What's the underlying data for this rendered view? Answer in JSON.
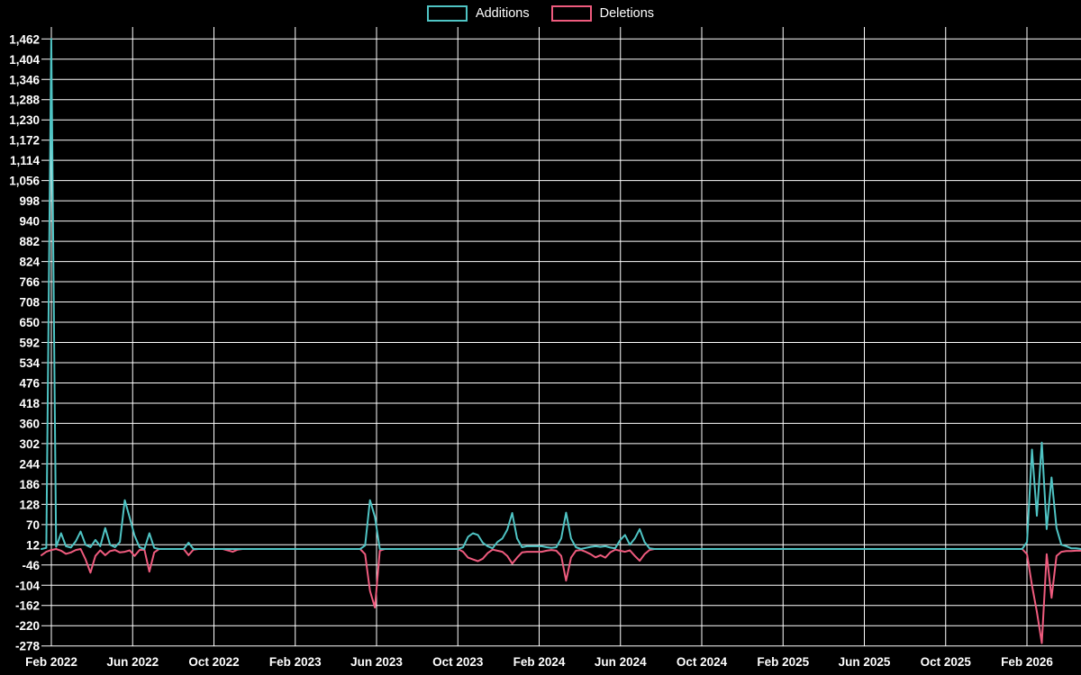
{
  "chart_data": {
    "type": "line",
    "title": "",
    "x_axis_unit": "weekly points from Feb 2022 to Feb 2026",
    "x_tick_labels": [
      "Feb 2022",
      "Jun 2022",
      "Oct 2022",
      "Feb 2023",
      "Jun 2023",
      "Oct 2023",
      "Feb 2024",
      "Jun 2024",
      "Oct 2024",
      "Feb 2025",
      "Jun 2025",
      "Oct 2025",
      "Feb 2026"
    ],
    "y_ticks": [
      -278,
      -220,
      -162,
      -104,
      -46,
      12,
      70,
      128,
      186,
      244,
      302,
      360,
      418,
      476,
      534,
      592,
      650,
      708,
      766,
      824,
      882,
      940,
      998,
      1056,
      1114,
      1172,
      1230,
      1288,
      1346,
      1404,
      1462
    ],
    "ylim": [
      -278,
      1462
    ],
    "grid": true,
    "legend_position": "top",
    "background_color": "#000000",
    "grid_color": "#ffffff",
    "text_color": "#ffffff",
    "series": [
      {
        "name": "Additions",
        "color": "#4fc4c4",
        "values": [
          0,
          3,
          1462,
          6,
          45,
          8,
          4,
          22,
          50,
          12,
          5,
          26,
          8,
          60,
          12,
          5,
          20,
          140,
          90,
          38,
          5,
          0,
          45,
          3,
          0,
          0,
          0,
          0,
          0,
          0,
          18,
          0,
          0,
          0,
          0,
          0,
          0,
          0,
          0,
          0,
          0,
          0,
          0,
          0,
          0,
          0,
          0,
          0,
          0,
          0,
          0,
          0,
          0,
          0,
          0,
          0,
          0,
          0,
          0,
          0,
          0,
          0,
          0,
          0,
          0,
          0,
          10,
          140,
          92,
          0,
          0,
          0,
          0,
          0,
          0,
          0,
          0,
          0,
          0,
          0,
          0,
          0,
          0,
          0,
          0,
          0,
          5,
          35,
          45,
          40,
          18,
          8,
          2,
          20,
          30,
          55,
          103,
          30,
          5,
          8,
          8,
          8,
          8,
          5,
          3,
          5,
          30,
          104,
          30,
          5,
          0,
          3,
          6,
          8,
          6,
          8,
          4,
          2,
          25,
          40,
          12,
          30,
          57,
          20,
          2,
          0,
          0,
          0,
          0,
          0,
          0,
          0,
          0,
          0,
          0,
          0,
          0,
          0,
          0,
          0,
          0,
          0,
          0,
          0,
          0,
          0,
          0,
          0,
          0,
          0,
          0,
          0,
          0,
          0,
          0,
          0,
          0,
          0,
          0,
          0,
          0,
          0,
          0,
          0,
          0,
          0,
          0,
          0,
          0,
          0,
          0,
          0,
          0,
          0,
          0,
          0,
          0,
          0,
          0,
          0,
          0,
          0,
          0,
          0,
          0,
          0,
          0,
          0,
          0,
          0,
          0,
          0,
          0,
          0,
          0,
          0,
          0,
          0,
          0,
          0,
          0,
          20,
          285,
          95,
          305,
          57,
          205,
          60,
          12,
          8,
          2,
          2,
          0
        ]
      },
      {
        "name": "Deletions",
        "color": "#ef5b7e",
        "values": [
          -18,
          -8,
          -3,
          0,
          -5,
          -14,
          -10,
          -3,
          0,
          -30,
          -68,
          -20,
          -4,
          -18,
          -6,
          -3,
          -10,
          -8,
          -4,
          -20,
          -3,
          -2,
          -65,
          -10,
          0,
          0,
          0,
          0,
          0,
          0,
          -18,
          -2,
          0,
          0,
          0,
          0,
          0,
          0,
          -4,
          -8,
          -2,
          0,
          0,
          0,
          0,
          0,
          0,
          0,
          0,
          0,
          0,
          0,
          0,
          0,
          0,
          0,
          0,
          0,
          0,
          0,
          0,
          0,
          0,
          0,
          0,
          0,
          -15,
          -120,
          -168,
          -5,
          0,
          0,
          0,
          0,
          0,
          0,
          0,
          0,
          0,
          0,
          0,
          0,
          0,
          0,
          0,
          0,
          -8,
          -25,
          -30,
          -35,
          -28,
          -12,
          -2,
          -5,
          -8,
          -20,
          -42,
          -25,
          -10,
          -8,
          -8,
          -8,
          -8,
          -5,
          -3,
          -5,
          -20,
          -91,
          -25,
          -5,
          -3,
          -8,
          -15,
          -24,
          -18,
          -25,
          -10,
          -2,
          -5,
          -8,
          -4,
          -20,
          -34,
          -15,
          -3,
          0,
          0,
          0,
          0,
          0,
          0,
          0,
          0,
          0,
          0,
          0,
          0,
          0,
          0,
          0,
          0,
          0,
          0,
          0,
          0,
          0,
          0,
          0,
          0,
          0,
          0,
          0,
          0,
          0,
          0,
          0,
          0,
          0,
          0,
          0,
          0,
          0,
          0,
          0,
          0,
          0,
          0,
          0,
          0,
          0,
          0,
          0,
          0,
          0,
          0,
          0,
          0,
          0,
          0,
          0,
          0,
          0,
          0,
          0,
          0,
          0,
          0,
          0,
          0,
          0,
          0,
          0,
          0,
          0,
          0,
          0,
          0,
          0,
          0,
          0,
          0,
          -15,
          -105,
          -180,
          -270,
          -15,
          -140,
          -20,
          -8,
          -6,
          -6,
          -5,
          -5
        ]
      }
    ]
  }
}
